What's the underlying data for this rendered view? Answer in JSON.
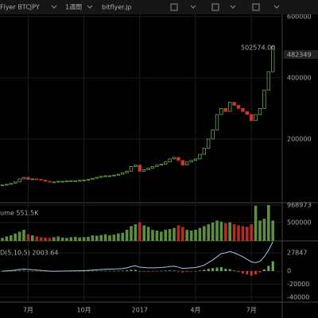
{
  "toolbar": {
    "symbol": "Flyer BTCJPY",
    "interval": "1週間",
    "source": "bitflyer.jp"
  },
  "chart_data": [
    {
      "type": "candlestick",
      "last_price_label": "502574.00",
      "axis_price_label": "482349",
      "categories": [
        null,
        null,
        null,
        null,
        null,
        null,
        "7月",
        null,
        null,
        null,
        null,
        null,
        null,
        null,
        null,
        null,
        null,
        null,
        null,
        "10月",
        null,
        null,
        null,
        null,
        null,
        null,
        null,
        null,
        null,
        null,
        null,
        null,
        "2017",
        null,
        null,
        null,
        null,
        null,
        null,
        null,
        null,
        null,
        null,
        null,
        null,
        "4月",
        null,
        null,
        null,
        null,
        null,
        null,
        null,
        null,
        null,
        null,
        null,
        null,
        "7月",
        null,
        null,
        null,
        null,
        null
      ],
      "series": [
        {
          "name": "BTCJPY",
          "values": [
            50000,
            52000,
            55000,
            60000,
            70000,
            75000,
            68000,
            70000,
            68000,
            66000,
            62000,
            60000,
            60000,
            62000,
            62000,
            63000,
            64000,
            64000,
            65000,
            66000,
            68000,
            72000,
            75000,
            78000,
            80000,
            80000,
            82000,
            85000,
            90000,
            95000,
            110000,
            115000,
            95000,
            100000,
            105000,
            110000,
            115000,
            118000,
            125000,
            135000,
            140000,
            130000,
            115000,
            125000,
            130000,
            135000,
            150000,
            170000,
            200000,
            230000,
            280000,
            300000,
            290000,
            320000,
            310000,
            300000,
            290000,
            280000,
            260000,
            280000,
            300000,
            360000,
            420000,
            502574
          ]
        }
      ],
      "up_color": "#6aa84f",
      "down_color": "#d2322d",
      "ylim": [
        -8000,
        654000
      ],
      "yticks": [
        200000,
        400000,
        600000
      ],
      "grid": true
    },
    {
      "type": "bar",
      "label": "ume 551.5K",
      "series": [
        {
          "name": "Volume",
          "values": [
            80000,
            120000,
            150000,
            200000,
            250000,
            300000,
            180000,
            150000,
            120000,
            100000,
            90000,
            80000,
            100000,
            120000,
            90000,
            80000,
            100000,
            110000,
            90000,
            100000,
            110000,
            150000,
            140000,
            160000,
            180000,
            150000,
            170000,
            200000,
            220000,
            300000,
            400000,
            450000,
            500000,
            420000,
            380000,
            300000,
            280000,
            250000,
            300000,
            320000,
            350000,
            420000,
            380000,
            300000,
            280000,
            300000,
            350000,
            400000,
            450000,
            500000,
            550000,
            520000,
            480000,
            500000,
            450000,
            420000,
            400000,
            380000,
            450000,
            950000,
            550000,
            600000,
            968973,
            551500
          ]
        }
      ],
      "ylim": [
        0,
        1033000
      ],
      "yticks": [
        500000,
        968973
      ]
    },
    {
      "type": "macd",
      "label": "D(5,10,5) 2003.64",
      "series": [
        {
          "name": "MACD",
          "color": "#9fc5e8",
          "values": [
            0,
            300,
            800,
            1500,
            2500,
            3000,
            2500,
            2000,
            1500,
            1000,
            500,
            0,
            -300,
            -200,
            0,
            200,
            300,
            400,
            500,
            700,
            1000,
            1500,
            2000,
            2500,
            2800,
            3000,
            3200,
            3500,
            4000,
            5000,
            7000,
            8000,
            6000,
            5500,
            5000,
            5000,
            5200,
            5500,
            6000,
            7000,
            7500,
            6000,
            4000,
            4500,
            5000,
            5500,
            7000,
            9000,
            13000,
            17000,
            22000,
            27000,
            28000,
            30000,
            28000,
            25000,
            22000,
            18000,
            14000,
            13000,
            15000,
            22000,
            32000,
            45000
          ]
        },
        {
          "name": "Histogram",
          "color": "#6aa84f",
          "values": [
            0,
            200,
            400,
            600,
            800,
            700,
            -300,
            -400,
            -400,
            -500,
            -500,
            -600,
            -400,
            -200,
            100,
            200,
            200,
            200,
            200,
            300,
            400,
            600,
            700,
            700,
            600,
            500,
            500,
            600,
            800,
            1200,
            2000,
            2000,
            -800,
            -900,
            -900,
            -600,
            -200,
            200,
            600,
            1000,
            900,
            -800,
            -2000,
            -1200,
            -500,
            -200,
            800,
            2000,
            3500,
            4500,
            5500,
            6000,
            3500,
            3000,
            1000,
            -1500,
            -3500,
            -5000,
            -7000,
            -5000,
            -2000,
            2500,
            8000,
            15000
          ]
        }
      ],
      "ylim": [
        -47500,
        46250
      ],
      "yticks": [
        -40000,
        -20000,
        0,
        27847
      ]
    }
  ]
}
